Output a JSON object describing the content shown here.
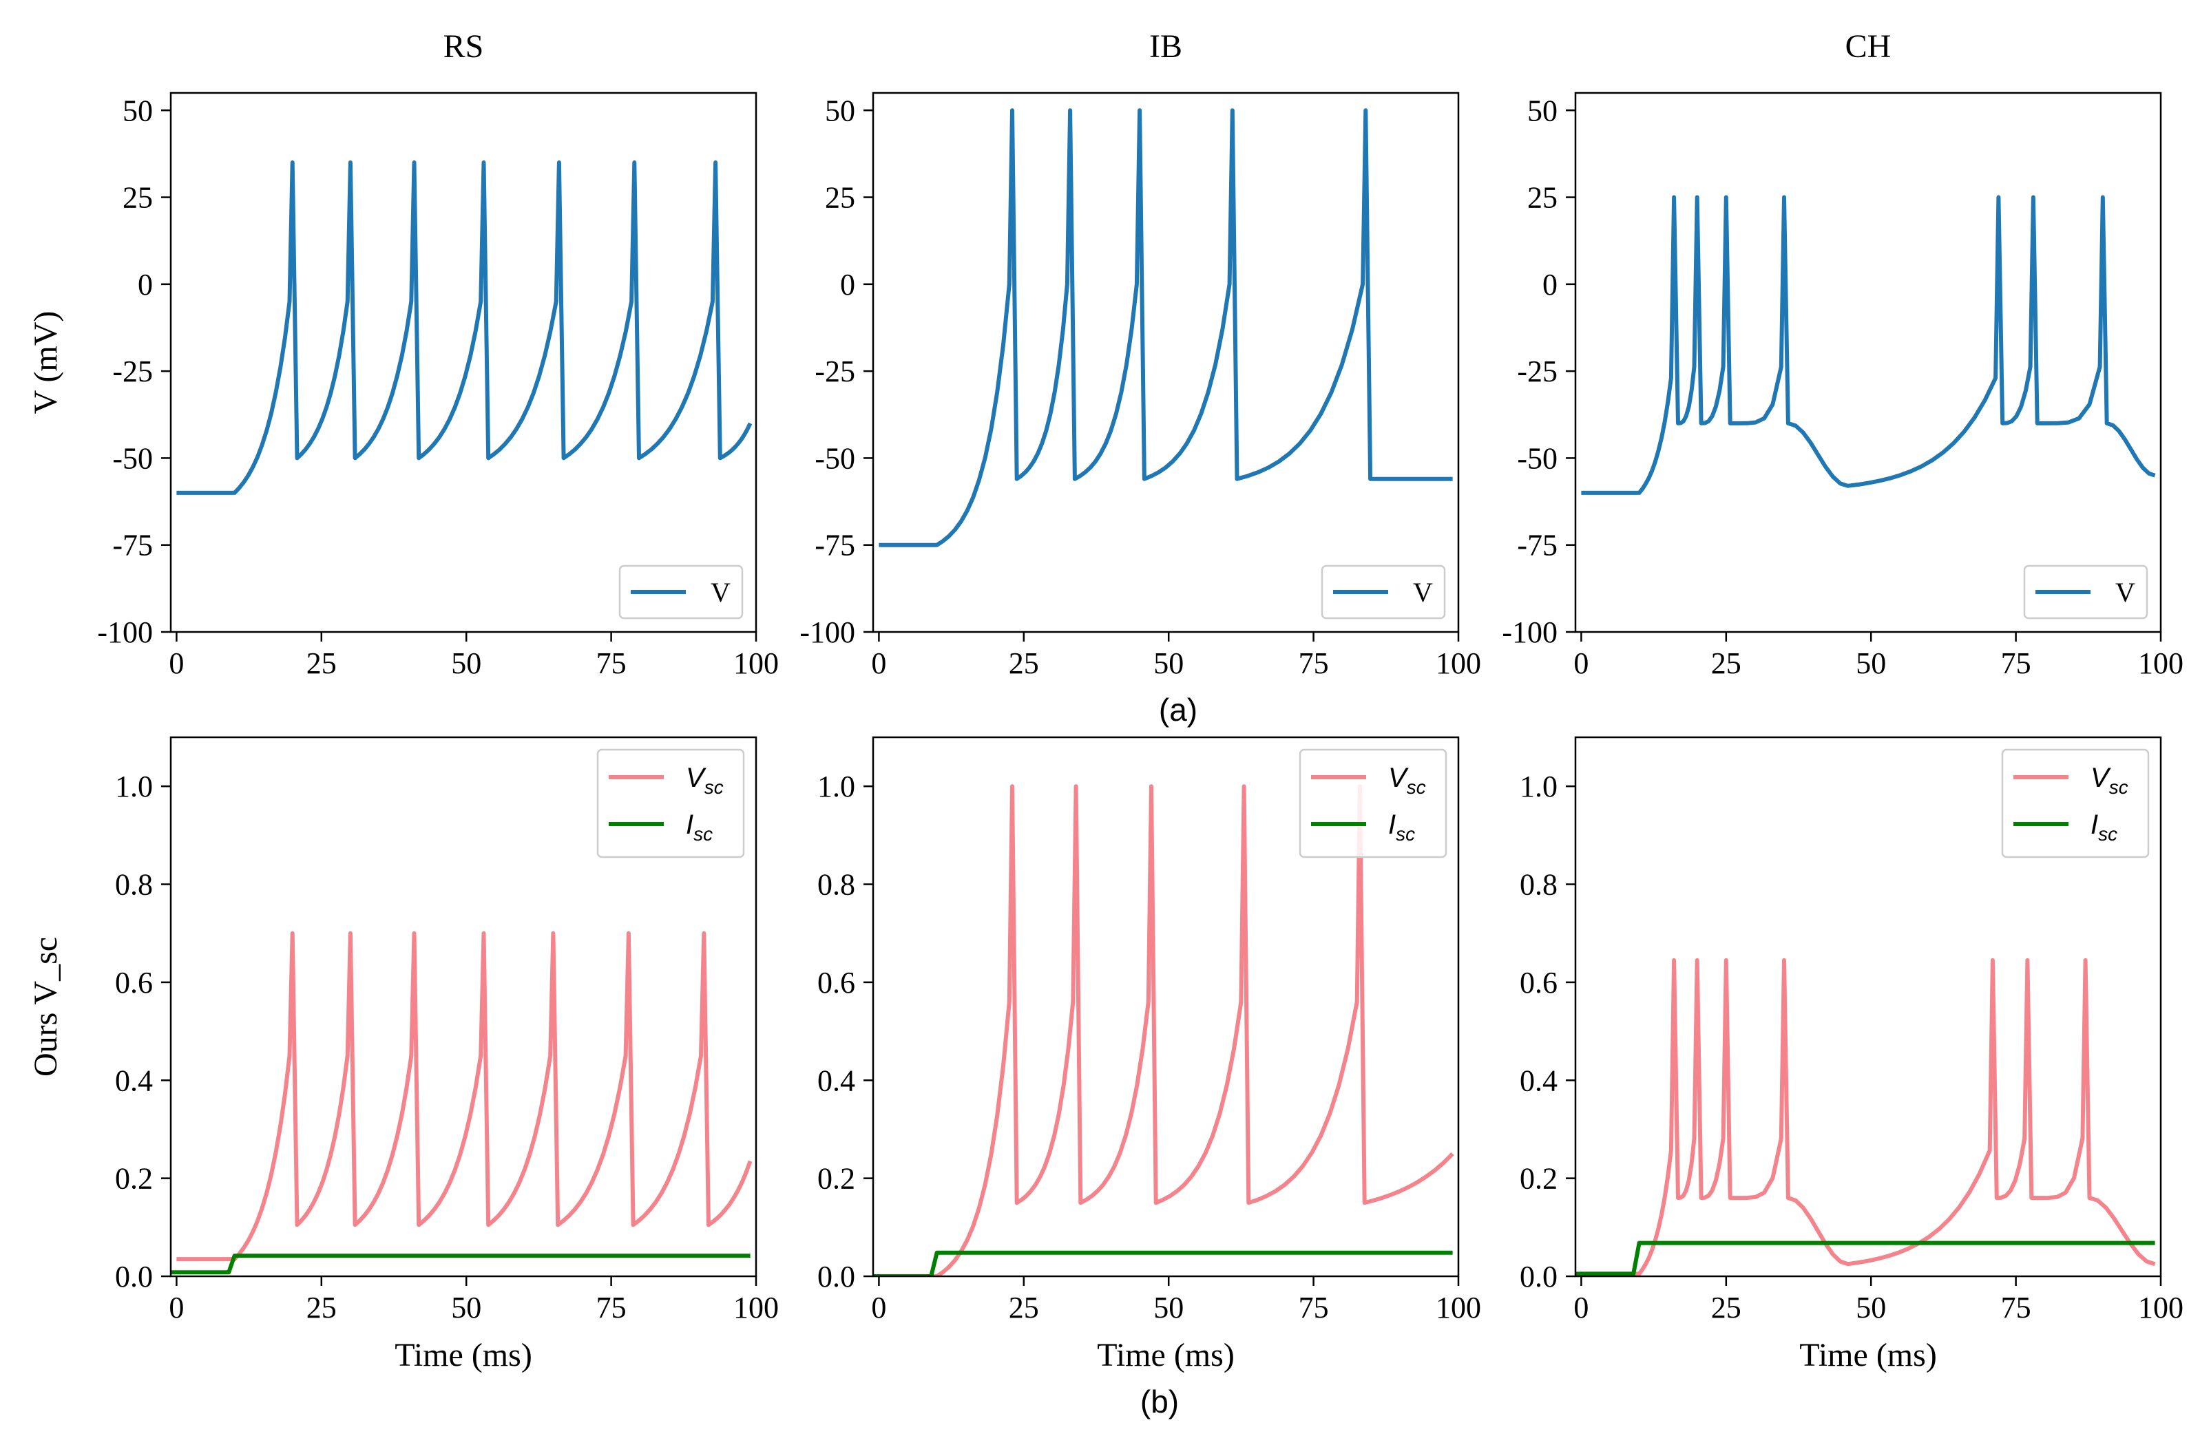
{
  "figure": {
    "caption_a": "(a)",
    "caption_b": "(b)"
  },
  "colors": {
    "voltage_line": "#1f77b4",
    "vsc_line": "#f4838b",
    "isc_line": "#008000",
    "axes": "#000000",
    "legend_border": "#cccccc"
  },
  "chart_data": [
    {
      "id": "rs_v",
      "type": "line",
      "title": "RS",
      "xlabel": "",
      "ylabel": "V (mV)",
      "xlim": [
        -1,
        100
      ],
      "ylim": [
        -100,
        55
      ],
      "xticks": [
        0,
        25,
        50,
        75,
        100
      ],
      "yticks": [
        50,
        25,
        0,
        -25,
        -50,
        -75,
        -100
      ],
      "xtick_labels": [
        "0",
        "25",
        "50",
        "75",
        "100"
      ],
      "ytick_labels": [
        "50",
        "25",
        "0",
        "-25",
        "-50",
        "-75",
        "-100"
      ],
      "legend": [
        "V"
      ],
      "legend_position": "lower right",
      "series": [
        {
          "name": "V",
          "color_key": "voltage_line",
          "kind": "spiking",
          "params": {
            "rest": -60,
            "onset": 10,
            "spike_times": [
              20,
              30,
              41,
              53,
              66,
              79,
              93
            ],
            "peak": 35,
            "reset": -50,
            "pre_peak": -5,
            "curve": 2.2,
            "tail_end": -40
          }
        }
      ]
    },
    {
      "id": "ib_v",
      "type": "line",
      "title": "IB",
      "xlabel": "",
      "ylabel": "",
      "xlim": [
        -1,
        100
      ],
      "ylim": [
        -100,
        55
      ],
      "xticks": [
        0,
        25,
        50,
        75,
        100
      ],
      "yticks": [
        50,
        25,
        0,
        -25,
        -50,
        -75,
        -100
      ],
      "xtick_labels": [
        "0",
        "25",
        "50",
        "75",
        "100"
      ],
      "ytick_labels": [
        "50",
        "25",
        "0",
        "-25",
        "-50",
        "-75",
        "-100"
      ],
      "legend": [
        "V"
      ],
      "legend_position": "lower right",
      "series": [
        {
          "name": "V",
          "color_key": "voltage_line",
          "kind": "spiking",
          "params": {
            "rest": -75,
            "onset": 10,
            "spike_times": [
              23,
              33,
              45,
              61,
              84
            ],
            "peak": 50,
            "reset": -56,
            "pre_peak": 0,
            "curve": 3.0,
            "tail_end": -56
          }
        }
      ]
    },
    {
      "id": "ch_v",
      "type": "line",
      "title": "CH",
      "xlabel": "",
      "ylabel": "",
      "xlim": [
        -1,
        100
      ],
      "ylim": [
        -100,
        55
      ],
      "xticks": [
        0,
        25,
        50,
        75,
        100
      ],
      "yticks": [
        50,
        25,
        0,
        -25,
        -50,
        -75,
        -100
      ],
      "xtick_labels": [
        "0",
        "25",
        "50",
        "75",
        "100"
      ],
      "ytick_labels": [
        "50",
        "25",
        "0",
        "-25",
        "-50",
        "-75",
        "-100"
      ],
      "legend": [
        "V"
      ],
      "legend_position": "lower right",
      "series": [
        {
          "name": "V",
          "color_key": "voltage_line",
          "kind": "bursting",
          "params": {
            "rest": -60,
            "onset": 10,
            "bursts": [
              [
                16,
                20,
                25,
                35
              ],
              [
                72,
                78,
                90
              ]
            ],
            "peak": 25,
            "reset": -40,
            "trough": -58,
            "trough_time": 46,
            "end_value": -55
          }
        }
      ]
    },
    {
      "id": "rs_sc",
      "type": "line",
      "title": "",
      "xlabel": "Time (ms)",
      "ylabel": "Ours V_sc",
      "xlim": [
        -1,
        100
      ],
      "ylim": [
        0,
        1.1
      ],
      "xticks": [
        0,
        25,
        50,
        75,
        100
      ],
      "yticks": [
        0.0,
        0.2,
        0.4,
        0.6,
        0.8,
        1.0
      ],
      "xtick_labels": [
        "0",
        "25",
        "50",
        "75",
        "100"
      ],
      "ytick_labels": [
        "0.0",
        "0.2",
        "0.4",
        "0.6",
        "0.8",
        "1.0"
      ],
      "legend": [
        "V",
        "sc",
        "I",
        "sc"
      ],
      "legend_position": "upper right",
      "series": [
        {
          "name": "V_sc",
          "color_key": "vsc_line",
          "kind": "spiking",
          "params": {
            "rest": 0.035,
            "onset": 10,
            "spike_times": [
              20,
              30,
              41,
              53,
              65,
              78,
              91
            ],
            "peak": 0.7,
            "reset": 0.105,
            "pre_peak": 0.45,
            "curve": 2.2,
            "tail_end": 0.235
          }
        },
        {
          "name": "I_sc",
          "color_key": "isc_line",
          "kind": "step",
          "params": {
            "low": 0.008,
            "high": 0.042,
            "t0": 9,
            "t1": 10
          }
        }
      ]
    },
    {
      "id": "ib_sc",
      "type": "line",
      "title": "",
      "xlabel": "Time (ms)",
      "ylabel": "",
      "xlim": [
        -1,
        100
      ],
      "ylim": [
        0,
        1.1
      ],
      "xticks": [
        0,
        25,
        50,
        75,
        100
      ],
      "yticks": [
        0.0,
        0.2,
        0.4,
        0.6,
        0.8,
        1.0
      ],
      "xtick_labels": [
        "0",
        "25",
        "50",
        "75",
        "100"
      ],
      "ytick_labels": [
        "0.0",
        "0.2",
        "0.4",
        "0.6",
        "0.8",
        "1.0"
      ],
      "legend": [
        "V",
        "sc",
        "I",
        "sc"
      ],
      "legend_position": "upper right",
      "series": [
        {
          "name": "V_sc",
          "color_key": "vsc_line",
          "kind": "spiking",
          "params": {
            "rest": 0.0,
            "onset": 10,
            "spike_times": [
              23,
              34,
              47,
              63,
              83
            ],
            "peak": 1.0,
            "reset": 0.15,
            "pre_peak": 0.56,
            "curve": 3.0,
            "tail_end": 0.25
          }
        },
        {
          "name": "I_sc",
          "color_key": "isc_line",
          "kind": "step",
          "params": {
            "low": 0.0,
            "high": 0.048,
            "t0": 9,
            "t1": 10
          }
        }
      ]
    },
    {
      "id": "ch_sc",
      "type": "line",
      "title": "",
      "xlabel": "Time (ms)",
      "ylabel": "",
      "xlim": [
        -1,
        100
      ],
      "ylim": [
        0,
        1.1
      ],
      "xticks": [
        0,
        25,
        50,
        75,
        100
      ],
      "yticks": [
        0.0,
        0.2,
        0.4,
        0.6,
        0.8,
        1.0
      ],
      "xtick_labels": [
        "0",
        "25",
        "50",
        "75",
        "100"
      ],
      "ytick_labels": [
        "0.0",
        "0.2",
        "0.4",
        "0.6",
        "0.8",
        "1.0"
      ],
      "legend": [
        "V",
        "sc",
        "I",
        "sc"
      ],
      "legend_position": "upper right",
      "series": [
        {
          "name": "V_sc",
          "color_key": "vsc_line",
          "kind": "bursting",
          "params": {
            "rest": 0.005,
            "onset": 10,
            "bursts": [
              [
                16,
                20,
                25,
                35
              ],
              [
                71,
                77,
                87
              ]
            ],
            "peak": 0.645,
            "reset": 0.16,
            "trough": 0.025,
            "trough_time": 46,
            "end_value": 0.025
          }
        },
        {
          "name": "I_sc",
          "color_key": "isc_line",
          "kind": "step",
          "params": {
            "low": 0.005,
            "high": 0.068,
            "t0": 9,
            "t1": 10
          }
        }
      ]
    }
  ]
}
